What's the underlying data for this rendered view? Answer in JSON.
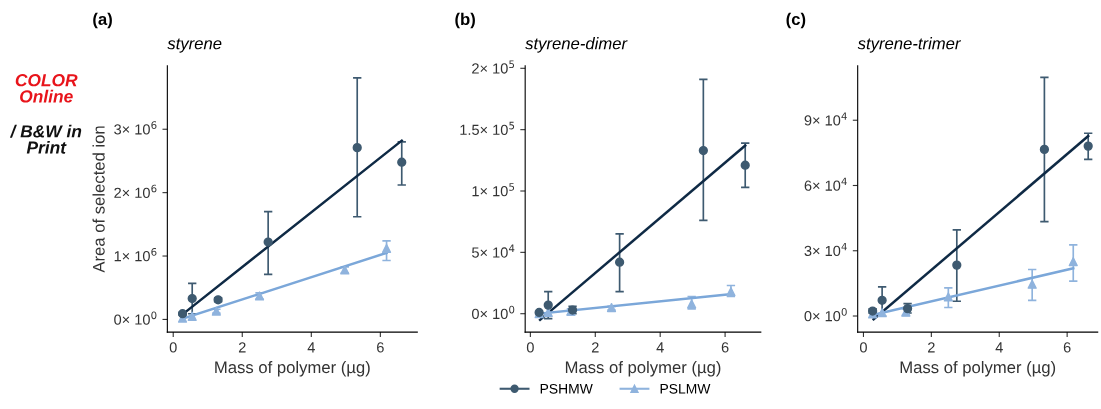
{
  "chart_data": [
    {
      "type": "scatter",
      "title": "(a)",
      "subtitle": "styrene",
      "xlabel": "Mass of polymer (µg)",
      "ylabel": "Area of selected ion",
      "annotations": [
        "COLOR Online",
        "/ B&W in Print"
      ],
      "legend": "bottom",
      "xlim": [
        -0.17,
        7.07
      ],
      "xticks": [
        0,
        2,
        4,
        6
      ],
      "ylim": [
        -200000,
        4000000
      ],
      "yticks": [
        {
          "value": 0,
          "label": "0× 10$^{0}$"
        },
        {
          "value": 1000000,
          "label": "1× 10$^{6}$"
        },
        {
          "value": 2000000,
          "label": "2× 10$^{6}$"
        },
        {
          "value": 3000000,
          "label": "3× 10$^{6}$"
        }
      ],
      "series": [
        {
          "name": "PSHMW",
          "type": "scatter",
          "marker": "circle",
          "color": "#3e5a70",
          "x": [
            0.27,
            0.55,
            1.3,
            2.75,
            5.33,
            6.62
          ],
          "values": [
            90000,
            330000,
            310000,
            1220000,
            2710000,
            2480000
          ],
          "errors": [
            [
              70000,
              110000
            ],
            [
              90000,
              570000
            ],
            [
              280000,
              340000
            ],
            [
              710000,
              1700000
            ],
            [
              1620000,
              3810000
            ],
            [
              2120000,
              2800000
            ]
          ]
        },
        {
          "type": "line",
          "color": "#0f2a45",
          "x": [
            0.27,
            6.62
          ],
          "values": [
            80000,
            2820000
          ]
        },
        {
          "name": "PSLMW",
          "type": "scatter",
          "marker": "triangle",
          "color": "#8fb3dd",
          "x": [
            0.27,
            0.55,
            1.25,
            2.5,
            4.97,
            6.18
          ],
          "values": [
            20000,
            50000,
            130000,
            370000,
            780000,
            1120000
          ],
          "errors": [
            null,
            null,
            [
              100000,
              160000
            ],
            [
              320000,
              420000
            ],
            [
              730000,
              830000
            ],
            [
              930000,
              1240000
            ]
          ]
        },
        {
          "type": "line",
          "color": "#7ba7d9",
          "x": [
            0.27,
            6.18
          ],
          "values": [
            10000,
            1050000
          ]
        }
      ]
    },
    {
      "type": "scatter",
      "title": "(b)",
      "subtitle": "styrene-dimer",
      "xlabel": "Mass of polymer (µg)",
      "legend": "bottom",
      "xlim": [
        -0.16,
        7.1
      ],
      "xticks": [
        0,
        2,
        4,
        6
      ],
      "ylim": [
        -15000,
        202000
      ],
      "yticks": [
        {
          "value": 0,
          "label": "0× 10$^{0}$"
        },
        {
          "value": 50000,
          "label": "5× 10$^{4}$"
        },
        {
          "value": 100000,
          "label": "1× 10$^{5}$"
        },
        {
          "value": 150000,
          "label": "1.5× 10$^{5}$"
        },
        {
          "value": 200000,
          "label": "2× 10$^{5}$"
        }
      ],
      "series": [
        {
          "name": "PSHMW",
          "marker": "circle",
          "color": "#3e5a70",
          "x": [
            0.27,
            0.55,
            1.3,
            2.75,
            5.33,
            6.62
          ],
          "values": [
            1000,
            7000,
            3000,
            42000,
            133000,
            121000
          ],
          "errors": [
            null,
            [
              -4000,
              18000
            ],
            [
              0,
              6000
            ],
            [
              18000,
              65000
            ],
            [
              76000,
              191000
            ],
            [
              103000,
              139000
            ]
          ]
        },
        {
          "type": "line",
          "color": "#0f2a45",
          "x": [
            0.3,
            6.62
          ],
          "values": [
            -5000,
            137000
          ]
        },
        {
          "name": "PSLMW",
          "marker": "triangle",
          "color": "#8fb3dd",
          "x": [
            0.27,
            0.55,
            1.25,
            2.5,
            4.97,
            6.18
          ],
          "values": [
            0,
            1000,
            2000,
            5000,
            8000,
            18000
          ],
          "errors": [
            null,
            null,
            [
              -1000,
              4000
            ],
            [
              3000,
              6000
            ],
            [
              4000,
              14000
            ],
            [
              14000,
              23000
            ]
          ]
        },
        {
          "type": "line",
          "color": "#7ba7d9",
          "x": [
            0.27,
            6.18
          ],
          "values": [
            0,
            16000
          ]
        }
      ]
    },
    {
      "type": "scatter",
      "title": "(c)",
      "subtitle": "styrene-trimer",
      "xlabel": "Mass of polymer (µg)",
      "legend": "bottom",
      "xlim": [
        -0.17,
        6.9
      ],
      "xticks": [
        0,
        2,
        4,
        6
      ],
      "ylim": [
        -7400,
        115000
      ],
      "yticks": [
        {
          "value": 0,
          "label": "0× 10$^{0}$"
        },
        {
          "value": 30000,
          "label": "3× 10$^{4}$"
        },
        {
          "value": 60000,
          "label": "6× 10$^{4}$"
        },
        {
          "value": 90000,
          "label": "9× 10$^{4}$"
        }
      ],
      "series": [
        {
          "name": "PSHMW",
          "type": "scatter",
          "marker": "circle",
          "color": "#3e5a70",
          "x": [
            0.27,
            0.55,
            1.3,
            2.75,
            5.33,
            6.62
          ],
          "values": [
            2300,
            7200,
            3400,
            23400,
            76600,
            78100
          ],
          "errors": [
            [
              1300,
              3300
            ],
            [
              0,
              13400
            ],
            [
              1400,
              5700
            ],
            [
              6800,
              39600
            ],
            [
              43400,
              109700
            ],
            [
              72000,
              84000
            ]
          ]
        },
        {
          "type": "line",
          "color": "#0f2a45",
          "x": [
            0.3,
            6.62
          ],
          "values": [
            -1500,
            82700
          ]
        },
        {
          "name": "PSLMW",
          "type": "scatter",
          "marker": "triangle",
          "color": "#8fb3dd",
          "x": [
            0.27,
            0.55,
            1.25,
            2.5,
            4.97,
            6.18
          ],
          "values": [
            1000,
            1500,
            1800,
            8800,
            14600,
            25000
          ],
          "errors": [
            null,
            null,
            [
              300,
              3300
            ],
            [
              3900,
              12900
            ],
            [
              7200,
              21400
            ],
            [
              16000,
              32700
            ]
          ]
        },
        {
          "type": "line",
          "color": "#7ba7d9",
          "x": [
            0.27,
            6.18
          ],
          "values": [
            500,
            21900
          ]
        }
      ]
    }
  ]
}
